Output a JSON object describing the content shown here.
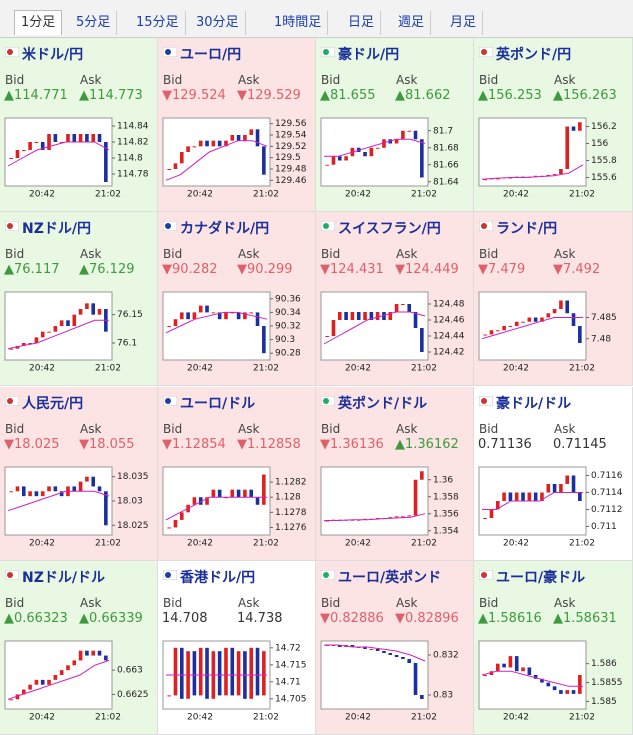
{
  "tabs": [
    "1分足",
    "5分足",
    "15分足",
    "30分足",
    "1時間足",
    "日足",
    "週足",
    "月足"
  ],
  "selected_tab": 0,
  "bid_label": "Bid",
  "ask_label": "Ask",
  "chart_xlabels": [
    "20:42",
    "21:02"
  ],
  "panels": [
    {
      "name": "米ドル/円",
      "trend": "up",
      "bid_arrow": "▲",
      "bid": "114.771",
      "ask_arrow": "▲",
      "ask": "114.773",
      "chart": {
        "ylim": [
          114.765,
          114.85
        ],
        "yticks": [
          114.78,
          114.8,
          114.82,
          114.84
        ],
        "close": [
          114.8,
          114.81,
          114.81,
          114.82,
          114.82,
          114.81,
          114.83,
          114.82,
          114.82,
          114.83,
          114.82,
          114.83,
          114.82,
          114.83,
          114.82,
          114.77
        ],
        "ma": [
          114.79,
          114.8,
          114.81,
          114.815,
          114.82,
          114.82,
          114.82,
          114.81
        ]
      }
    },
    {
      "name": "ユーロ/円",
      "trend": "down",
      "bid_arrow": "▼",
      "bid": "129.524",
      "ask_arrow": "▼",
      "ask": "129.529",
      "chart": {
        "ylim": [
          129.45,
          129.57
        ],
        "yticks": [
          129.46,
          129.48,
          129.5,
          129.52,
          129.54,
          129.56
        ],
        "close": [
          129.48,
          129.49,
          129.51,
          129.52,
          129.52,
          129.53,
          129.52,
          129.53,
          129.52,
          129.53,
          129.54,
          129.53,
          129.54,
          129.55,
          129.52,
          129.47
        ],
        "ma": [
          129.46,
          129.47,
          129.49,
          129.51,
          129.52,
          129.53,
          129.53,
          129.52
        ]
      }
    },
    {
      "name": "豪ドル/円",
      "trend": "up",
      "bid_arrow": "▲",
      "bid": "81.655",
      "ask_arrow": "▲",
      "ask": "81.662",
      "chart": {
        "ylim": [
          81.635,
          81.715
        ],
        "yticks": [
          81.64,
          81.66,
          81.68,
          81.7
        ],
        "close": [
          81.66,
          81.67,
          81.665,
          81.67,
          81.68,
          81.675,
          81.67,
          81.68,
          81.68,
          81.69,
          81.685,
          81.69,
          81.7,
          81.7,
          81.69,
          81.645
        ],
        "ma": [
          81.67,
          81.67,
          81.675,
          81.68,
          81.685,
          81.69,
          81.69,
          81.685
        ]
      }
    },
    {
      "name": "英ポンド/円",
      "trend": "up",
      "bid_arrow": "▲",
      "bid": "156.253",
      "ask_arrow": "▲",
      "ask": "156.263",
      "chart": {
        "ylim": [
          155.5,
          156.3
        ],
        "yticks": [
          155.6,
          155.8,
          156,
          156.2
        ],
        "close": [
          155.58,
          155.59,
          155.59,
          155.6,
          155.6,
          155.61,
          155.6,
          155.61,
          155.62,
          155.62,
          155.63,
          155.64,
          155.7,
          156.2,
          156.15,
          156.25
        ],
        "ma": [
          155.58,
          155.59,
          155.6,
          155.6,
          155.61,
          155.62,
          155.65,
          155.75
        ]
      }
    },
    {
      "name": "NZドル/円",
      "trend": "up",
      "bid_arrow": "▲",
      "bid": "76.117",
      "ask_arrow": "▲",
      "ask": "76.129",
      "chart": {
        "ylim": [
          76.07,
          76.19
        ],
        "yticks": [
          76.1,
          76.15
        ],
        "close": [
          76.09,
          76.095,
          76.1,
          76.1,
          76.11,
          76.12,
          76.12,
          76.13,
          76.14,
          76.13,
          76.15,
          76.16,
          76.17,
          76.15,
          76.16,
          76.12
        ],
        "ma": [
          76.09,
          76.095,
          76.1,
          76.11,
          76.12,
          76.13,
          76.14,
          76.14
        ]
      }
    },
    {
      "name": "カナダドル/円",
      "trend": "down",
      "bid_arrow": "▼",
      "bid": "90.282",
      "ask_arrow": "▼",
      "ask": "90.299",
      "chart": {
        "ylim": [
          90.27,
          90.37
        ],
        "yticks": [
          90.28,
          90.3,
          90.32,
          90.34,
          90.36
        ],
        "close": [
          90.32,
          90.33,
          90.34,
          90.33,
          90.34,
          90.35,
          90.34,
          90.34,
          90.33,
          90.34,
          90.34,
          90.33,
          90.34,
          90.34,
          90.32,
          90.28
        ],
        "ma": [
          90.31,
          90.32,
          90.33,
          90.335,
          90.34,
          90.34,
          90.335,
          90.33
        ]
      }
    },
    {
      "name": "スイスフラン/円",
      "trend": "down",
      "bid_arrow": "▼",
      "bid": "124.431",
      "ask_arrow": "▼",
      "ask": "124.449",
      "chart": {
        "ylim": [
          124.41,
          124.495
        ],
        "yticks": [
          124.42,
          124.44,
          124.46,
          124.48
        ],
        "close": [
          124.44,
          124.46,
          124.47,
          124.46,
          124.47,
          124.46,
          124.47,
          124.46,
          124.47,
          124.46,
          124.47,
          124.48,
          124.48,
          124.47,
          124.45,
          124.42
        ],
        "ma": [
          124.43,
          124.44,
          124.45,
          124.46,
          124.465,
          124.47,
          124.47,
          124.465
        ]
      }
    },
    {
      "name": "ランド/円",
      "trend": "down",
      "bid_arrow": "▼",
      "bid": "7.479",
      "ask_arrow": "▼",
      "ask": "7.492",
      "chart": {
        "ylim": [
          7.475,
          7.491
        ],
        "yticks": [
          7.48,
          7.485
        ],
        "close": [
          7.481,
          7.482,
          7.482,
          7.483,
          7.483,
          7.484,
          7.484,
          7.485,
          7.484,
          7.485,
          7.486,
          7.487,
          7.489,
          7.486,
          7.483,
          7.479
        ],
        "ma": [
          7.48,
          7.481,
          7.482,
          7.483,
          7.484,
          7.485,
          7.485,
          7.485
        ]
      }
    },
    {
      "name": "人民元/円",
      "trend": "down",
      "bid_arrow": "▼",
      "bid": "18.025",
      "ask_arrow": "▼",
      "ask": "18.055",
      "chart": {
        "ylim": [
          18.023,
          18.037
        ],
        "yticks": [
          18.025,
          18.03,
          18.035
        ],
        "close": [
          18.032,
          18.033,
          18.031,
          18.032,
          18.031,
          18.032,
          18.033,
          18.032,
          18.031,
          18.033,
          18.032,
          18.034,
          18.035,
          18.033,
          18.032,
          18.025
        ],
        "ma": [
          18.028,
          18.029,
          18.03,
          18.031,
          18.032,
          18.032,
          18.032,
          18.031
        ]
      }
    },
    {
      "name": "ユーロ/ドル",
      "trend": "down",
      "bid_arrow": "▼",
      "bid": "1.12854",
      "ask_arrow": "▼",
      "ask": "1.12858",
      "chart": {
        "ylim": [
          1.1275,
          1.1284
        ],
        "yticks": [
          1.1276,
          1.1278,
          1.128,
          1.1282
        ],
        "close": [
          1.1276,
          1.1277,
          1.1278,
          1.1279,
          1.128,
          1.1279,
          1.128,
          1.1281,
          1.128,
          1.128,
          1.1281,
          1.128,
          1.1281,
          1.128,
          1.1279,
          1.1283
        ],
        "ma": [
          1.1277,
          1.1278,
          1.1279,
          1.128,
          1.128,
          1.128,
          1.128,
          1.128
        ]
      }
    },
    {
      "name": "英ポンド/ドル",
      "trend": "down",
      "bid_arrow": "▼",
      "bid": "1.36136",
      "ask_arrow": "▲",
      "ask": "1.36162",
      "chart": {
        "ylim": [
          1.3535,
          1.3615
        ],
        "yticks": [
          1.354,
          1.356,
          1.358,
          1.36
        ],
        "close": [
          1.3552,
          1.3553,
          1.3553,
          1.3552,
          1.3553,
          1.3553,
          1.3554,
          1.3554,
          1.3555,
          1.3555,
          1.3556,
          1.3557,
          1.3557,
          1.3558,
          1.36,
          1.361
        ],
        "ma": [
          1.3552,
          1.3552,
          1.3553,
          1.3553,
          1.3554,
          1.3555,
          1.3556,
          1.356
        ]
      }
    },
    {
      "name": "豪ドル/ドル",
      "trend": "flat",
      "bid": "0.71136",
      "ask": "0.71145",
      "chart": {
        "ylim": [
          0.7109,
          0.7117
        ],
        "yticks": [
          0.711,
          0.7112,
          0.7114,
          0.7116
        ],
        "close": [
          0.7111,
          0.7112,
          0.7113,
          0.7114,
          0.7113,
          0.7114,
          0.7113,
          0.7114,
          0.7113,
          0.7114,
          0.7115,
          0.7114,
          0.7115,
          0.7116,
          0.7114,
          0.7113
        ],
        "ma": [
          0.7112,
          0.7112,
          0.7113,
          0.7113,
          0.7113,
          0.7114,
          0.7114,
          0.7114
        ]
      }
    },
    {
      "name": "NZドル/ドル",
      "trend": "up",
      "bid_arrow": "▲",
      "bid": "0.66323",
      "ask_arrow": "▲",
      "ask": "0.66339",
      "chart": {
        "ylim": [
          0.6622,
          0.6636
        ],
        "yticks": [
          0.6625,
          0.663
        ],
        "close": [
          0.6624,
          0.6625,
          0.6626,
          0.6627,
          0.6628,
          0.6627,
          0.6628,
          0.6629,
          0.663,
          0.6631,
          0.6632,
          0.6634,
          0.6633,
          0.6634,
          0.6633,
          0.6632
        ],
        "ma": [
          0.6624,
          0.6625,
          0.6626,
          0.6627,
          0.6628,
          0.6629,
          0.6631,
          0.6632
        ]
      }
    },
    {
      "name": "香港ドル/円",
      "trend": "flat",
      "bid": "14.708",
      "ask": "14.738",
      "chart": {
        "ylim": [
          14.702,
          14.722
        ],
        "yticks": [
          14.705,
          14.71,
          14.715,
          14.72
        ],
        "close": [
          14.706,
          14.72,
          14.705,
          14.719,
          14.706,
          14.72,
          14.705,
          14.719,
          14.706,
          14.72,
          14.706,
          14.719,
          14.705,
          14.72,
          14.706,
          14.719
        ],
        "ma": [
          14.712,
          14.712,
          14.712,
          14.712,
          14.712,
          14.712,
          14.712,
          14.712
        ]
      }
    },
    {
      "name": "ユーロ/英ポンド",
      "trend": "down",
      "bid_arrow": "▼",
      "bid": "0.82886",
      "ask_arrow": "▼",
      "ask": "0.82896",
      "chart": {
        "ylim": [
          0.8293,
          0.8327
        ],
        "yticks": [
          0.83,
          0.832
        ],
        "close": [
          0.8325,
          0.8325,
          0.8324,
          0.8325,
          0.8324,
          0.8324,
          0.8323,
          0.8323,
          0.8322,
          0.8321,
          0.832,
          0.8319,
          0.8318,
          0.8316,
          0.83,
          0.8298
        ],
        "ma": [
          0.8325,
          0.8325,
          0.8324,
          0.8324,
          0.8323,
          0.8322,
          0.832,
          0.8317
        ]
      }
    },
    {
      "name": "ユーロ/豪ドル",
      "trend": "up",
      "bid_arrow": "▲",
      "bid": "1.58616",
      "ask_arrow": "▲",
      "ask": "1.58631",
      "chart": {
        "ylim": [
          1.5848,
          1.5866
        ],
        "yticks": [
          1.585,
          1.5855,
          1.586
        ],
        "close": [
          1.5857,
          1.5858,
          1.586,
          1.5859,
          1.5862,
          1.5858,
          1.5859,
          1.5857,
          1.5856,
          1.5855,
          1.5854,
          1.5853,
          1.5852,
          1.5853,
          1.5852,
          1.5857
        ],
        "ma": [
          1.5857,
          1.5858,
          1.5858,
          1.5857,
          1.5856,
          1.5855,
          1.5854,
          1.5854
        ]
      }
    }
  ]
}
